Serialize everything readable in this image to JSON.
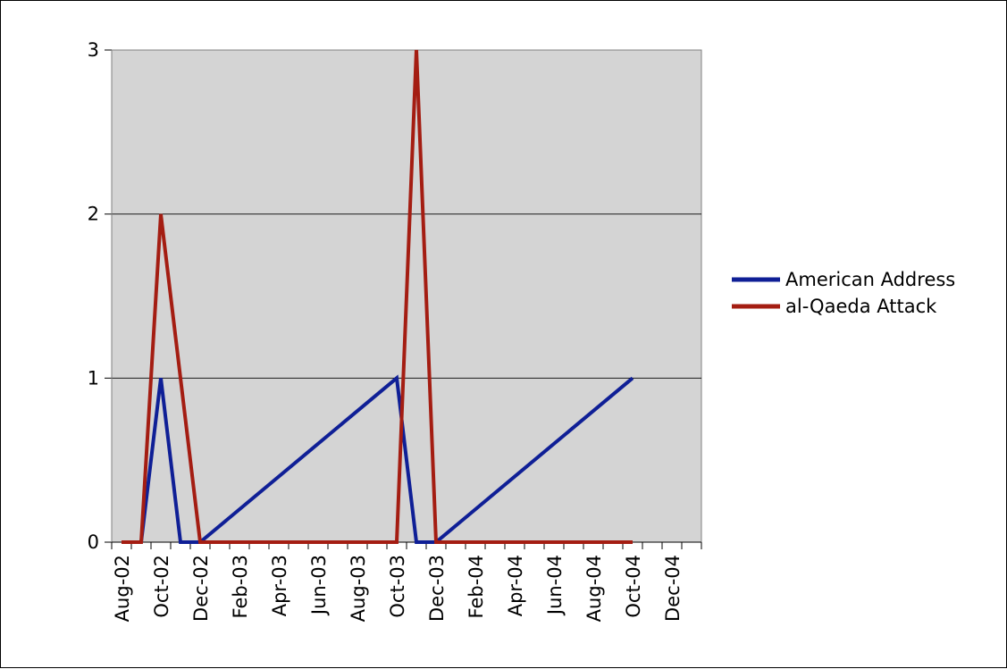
{
  "chart_data": {
    "type": "line",
    "title": "",
    "xlabel": "",
    "ylabel": "",
    "x": [
      "Aug-02",
      "Sep-02",
      "Oct-02",
      "Nov-02",
      "Dec-02",
      "Jan-03",
      "Feb-03",
      "Mar-03",
      "Apr-03",
      "May-03",
      "Jun-03",
      "Jul-03",
      "Aug-03",
      "Sep-03",
      "Oct-03",
      "Nov-03",
      "Dec-03",
      "Jan-04",
      "Feb-04",
      "Mar-04",
      "Apr-04",
      "May-04",
      "Jun-04",
      "Jul-04",
      "Aug-04",
      "Sep-04",
      "Oct-04",
      "Nov-04",
      "Dec-04"
    ],
    "x_tick_labels": [
      "Aug-02",
      "Oct-02",
      "Dec-02",
      "Feb-03",
      "Apr-03",
      "Jun-03",
      "Aug-03",
      "Oct-03",
      "Dec-03",
      "Feb-04",
      "Apr-04",
      "Jun-04",
      "Aug-04",
      "Oct-04",
      "Dec-04"
    ],
    "y_ticks": [
      0,
      1,
      2,
      3
    ],
    "ylim": [
      0,
      3
    ],
    "grid": true,
    "legend_position": "right",
    "series": [
      {
        "name": "American Address",
        "color": "#0f1f96",
        "points": [
          {
            "x": "Sep-02",
            "y": 0
          },
          {
            "x": "Oct-02",
            "y": 1
          },
          {
            "x": "Nov-02",
            "y": 0
          },
          {
            "x": "Dec-02",
            "y": 0
          },
          {
            "x": "Oct-03",
            "y": 1
          },
          {
            "x": "Nov-03",
            "y": 0
          },
          {
            "x": "Dec-03",
            "y": 0
          },
          {
            "x": "Oct-04",
            "y": 1
          }
        ]
      },
      {
        "name": "al-Qaeda Attack",
        "color": "#a41d12",
        "points": [
          {
            "x": "Aug-02",
            "y": 0
          },
          {
            "x": "Sep-02",
            "y": 0
          },
          {
            "x": "Oct-02",
            "y": 2
          },
          {
            "x": "Dec-02",
            "y": 0
          },
          {
            "x": "Oct-03",
            "y": 0
          },
          {
            "x": "Nov-03",
            "y": 3
          },
          {
            "x": "Dec-03",
            "y": 0
          },
          {
            "x": "Oct-04",
            "y": 0
          }
        ]
      }
    ]
  }
}
